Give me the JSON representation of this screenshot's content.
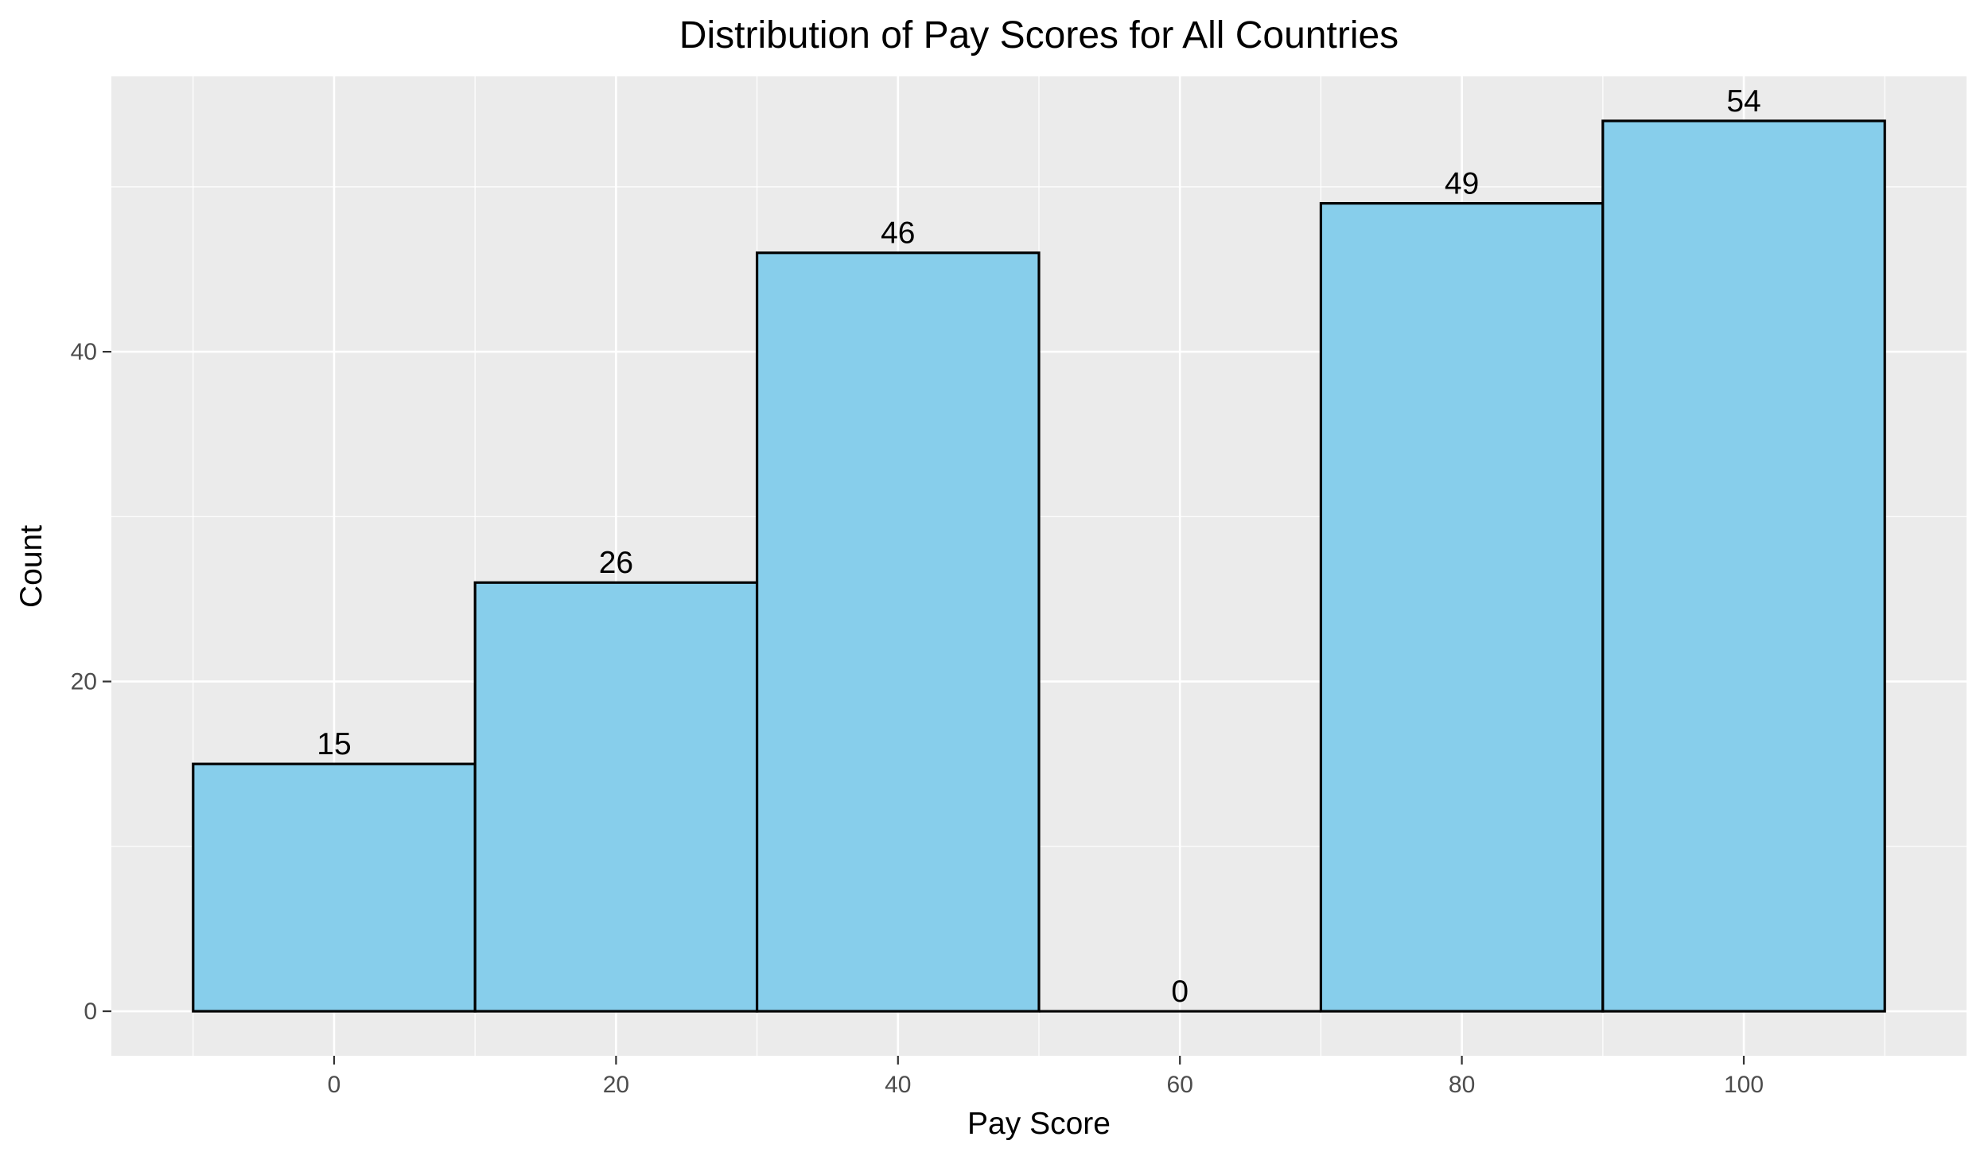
{
  "chart_data": {
    "type": "bar",
    "title": "Distribution of Pay Scores for All Countries",
    "xlabel": "Pay Score",
    "ylabel": "Count",
    "bins": [
      {
        "start": -10,
        "end": 10,
        "center": 0,
        "count": 15,
        "label": "15"
      },
      {
        "start": 10,
        "end": 30,
        "center": 20,
        "count": 26,
        "label": "26"
      },
      {
        "start": 30,
        "end": 50,
        "center": 40,
        "count": 46,
        "label": "46"
      },
      {
        "start": 50,
        "end": 70,
        "center": 60,
        "count": 0,
        "label": "0"
      },
      {
        "start": 70,
        "end": 90,
        "center": 80,
        "count": 49,
        "label": "49"
      },
      {
        "start": 90,
        "end": 110,
        "center": 100,
        "count": 54,
        "label": "54"
      }
    ],
    "x_ticks": [
      {
        "value": 0,
        "label": "0"
      },
      {
        "value": 20,
        "label": "20"
      },
      {
        "value": 40,
        "label": "40"
      },
      {
        "value": 60,
        "label": "60"
      },
      {
        "value": 80,
        "label": "80"
      },
      {
        "value": 100,
        "label": "100"
      }
    ],
    "y_ticks": [
      {
        "value": 0,
        "label": "0"
      },
      {
        "value": 20,
        "label": "20"
      },
      {
        "value": 40,
        "label": "40"
      }
    ],
    "xlim": [
      -15.8,
      115.8
    ],
    "ylim": [
      -2.7,
      56.7
    ],
    "grid": true,
    "colors": {
      "bar_fill": "#87CEEB",
      "bar_stroke": "#000000",
      "panel_background": "#EBEBEB",
      "grid": "#FFFFFF",
      "tick_label": "#4D4D4D"
    }
  }
}
